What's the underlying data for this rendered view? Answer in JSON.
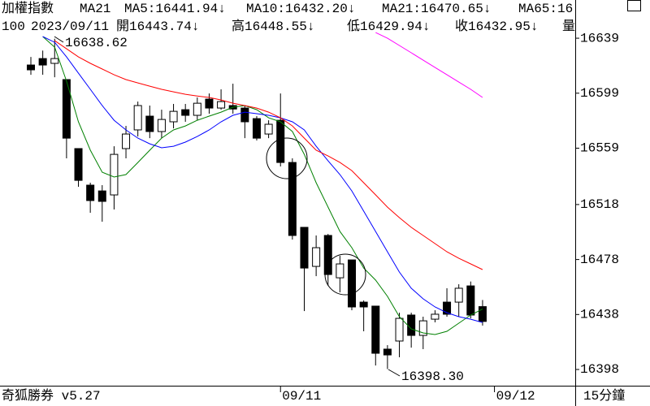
{
  "chart_data": {
    "type": "candlestick",
    "title": "加權指數",
    "indicator": "MA21",
    "info": [
      "100",
      "2023/09/11",
      "開16443.74↓",
      "高16448.55↓",
      "低16429.94↓",
      "收16432.95↓",
      "量"
    ],
    "footer_left": "奇狐勝券 v5.27",
    "footer_right": "15分鐘",
    "annotations": [
      {
        "value": 16638.62,
        "label": "16638.62"
      },
      {
        "value": 16398.3,
        "label": "16398.30"
      }
    ],
    "categories": [
      null,
      null,
      null,
      null,
      null,
      null,
      null,
      null,
      null,
      null,
      null,
      null,
      null,
      null,
      null,
      null,
      null,
      null,
      null,
      null,
      null,
      "09/11",
      null,
      null,
      null,
      null,
      null,
      null,
      null,
      null,
      null,
      null,
      null,
      null,
      null,
      null,
      null,
      null,
      null,
      "09/12"
    ],
    "open": [
      16619.5,
      16624.2,
      16620.7,
      16608.9,
      16558.7,
      16532.1,
      16527.9,
      16525.0,
      16558.7,
      16572.3,
      16582.3,
      16571.1,
      16578.2,
      16587.0,
      16582.9,
      16594.7,
      16588.2,
      16590.0,
      16588.2,
      16580.5,
      16569.3,
      16579.3,
      16548.6,
      16501.4,
      16473.0,
      16495.5,
      16464.7,
      16477.7,
      16447.0,
      16444.1,
      16412.8,
      16418.7,
      16437.6,
      16422.8,
      16434.6,
      16447.0,
      16447.0,
      16458.8,
      16443.74,
      null
    ],
    "high": [
      16625.4,
      16630.0,
      16638.62,
      16608.9,
      16558.7,
      16533.9,
      16532.1,
      16560.4,
      16575.2,
      16592.9,
      16590.0,
      16587.0,
      16591.2,
      16591.2,
      16595.9,
      16598.8,
      16601.8,
      16605.9,
      16590.0,
      16582.3,
      16579.3,
      16598.8,
      16551.6,
      16501.4,
      16495.5,
      16496.6,
      16480.7,
      16477.7,
      16448.2,
      16444.1,
      16415.7,
      16439.3,
      16439.3,
      16436.4,
      16441.1,
      16457.1,
      16460.0,
      16462.0,
      16448.55,
      null
    ],
    "low": [
      16612.4,
      16612.4,
      16610.6,
      16551.6,
      16530.9,
      16512.0,
      16505.5,
      16514.4,
      16551.6,
      16567.5,
      16566.3,
      16566.3,
      16573.4,
      16578.2,
      16579.3,
      16584.1,
      16587.0,
      16584.1,
      16566.3,
      16564.6,
      16566.3,
      16545.7,
      16492.5,
      16440.5,
      16465.9,
      16459.0,
      16454.1,
      16441.1,
      16425.8,
      16400.9,
      16398.3,
      16406.9,
      16413.9,
      16412.8,
      16432.3,
      16436.4,
      16436.4,
      16435.2,
      16429.94,
      null
    ],
    "close": [
      16616.0,
      16619.5,
      16624.2,
      16566.3,
      16535.6,
      16520.9,
      16520.3,
      16554.5,
      16569.3,
      16590.0,
      16571.1,
      16579.9,
      16585.8,
      16582.9,
      16591.7,
      16588.2,
      16592.9,
      16587.5,
      16578.2,
      16566.3,
      16576.4,
      16548.6,
      16495.5,
      16471.8,
      16486.6,
      16467.1,
      16474.8,
      16443.5,
      16443.5,
      16409.8,
      16408.6,
      16435.2,
      16422.8,
      16433.4,
      16438.2,
      16438.2,
      16457.1,
      16437.6,
      16432.95,
      null
    ],
    "series": [
      {
        "name": "MA5:16441.94↓",
        "color": "#008000",
        "values": [
          null,
          16640.2,
          16632.5,
          16607.7,
          16578.2,
          16557.5,
          16541.5,
          16538.0,
          16539.8,
          16548.6,
          16557.5,
          16566.3,
          16572.3,
          16575.2,
          16579.3,
          16582.3,
          16585.2,
          16588.8,
          16590.0,
          16587.0,
          16581.1,
          16578.2,
          16571.1,
          16554.5,
          16533.9,
          16516.1,
          16498.4,
          16486.6,
          16471.8,
          16463.0,
          16451.2,
          16436.4,
          16427.5,
          16424.6,
          16423.4,
          16425.8,
          16431.7,
          16437.6,
          16441.94,
          null
        ]
      },
      {
        "name": "MA10:16432.20↓",
        "color": "#0000ff",
        "values": [
          null,
          16640.2,
          16636.0,
          16625.4,
          16613.6,
          16601.8,
          16590.0,
          16579.3,
          16572.3,
          16566.3,
          16562.2,
          16559.3,
          16560.4,
          16563.4,
          16567.5,
          16572.3,
          16578.2,
          16582.9,
          16585.2,
          16584.1,
          16582.9,
          16581.1,
          16578.2,
          16572.3,
          16560.4,
          16549.8,
          16539.8,
          16527.9,
          16513.2,
          16498.4,
          16483.6,
          16468.9,
          16457.1,
          16449.4,
          16443.5,
          16439.3,
          16436.4,
          16434.6,
          16432.2,
          null
        ]
      },
      {
        "name": "MA21:16470.65↓",
        "color": "#ff0000",
        "values": [
          null,
          null,
          16637.2,
          16631.3,
          16625.4,
          16620.7,
          16616.6,
          16612.4,
          16608.9,
          16606.5,
          16604.1,
          16601.8,
          16600.0,
          16598.2,
          16597.0,
          16595.9,
          16594.1,
          16591.7,
          16590.0,
          16588.2,
          16585.2,
          16581.1,
          16575.2,
          16566.3,
          16557.5,
          16553.3,
          16548.6,
          16542.7,
          16533.9,
          16525.0,
          16516.1,
          16508.5,
          16501.4,
          16495.5,
          16489.6,
          16483.6,
          16478.9,
          16474.8,
          16470.65,
          null
        ]
      },
      {
        "name": "MA65:16",
        "color": "#ff00ff",
        "values": [
          null,
          null,
          null,
          null,
          null,
          null,
          null,
          null,
          null,
          null,
          null,
          null,
          null,
          null,
          null,
          null,
          null,
          null,
          null,
          null,
          null,
          null,
          null,
          null,
          null,
          null,
          null,
          null,
          null,
          16643.1,
          16639.0,
          16633.7,
          16628.4,
          16623.0,
          16617.7,
          16612.4,
          16607.1,
          16601.8,
          16595.9,
          null
        ]
      }
    ],
    "ylim": [
      16386.2,
      16666.8
    ],
    "yticks": [
      16639,
      16599,
      16559,
      16518,
      16478,
      16438,
      16398
    ],
    "grid": false
  }
}
